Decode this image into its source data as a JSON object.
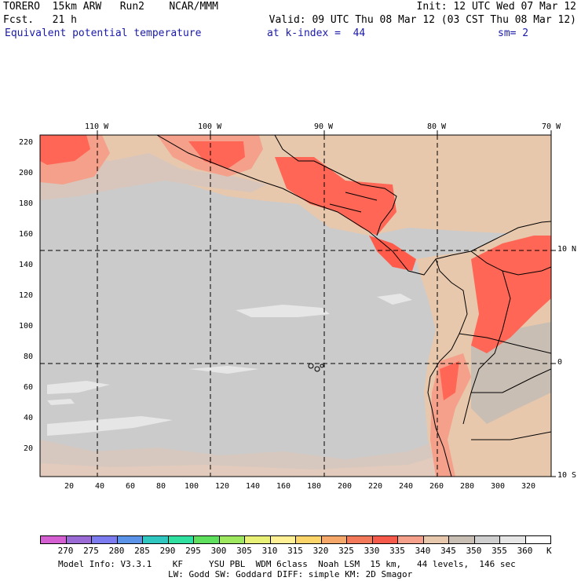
{
  "header": {
    "line1_left": "TORERO  15km ARW   Run2    NCAR/MMM",
    "line1_right": "Init: 12 UTC Wed 07 Mar 12",
    "line2_left": "Fcst.   21 h",
    "line2_right": "Valid: 09 UTC Thu 08 Mar 12 (03 CST Thu 08 Mar 12)",
    "field": "Equivalent potential temperature",
    "level": "at k-index =  44",
    "smooth": "sm= 2"
  },
  "map": {
    "top_lon_labels": [
      "110 W",
      "100 W",
      "90 W",
      "80 W",
      "70 W"
    ],
    "right_lat_labels": [
      "10 N",
      "0",
      "10 S"
    ],
    "x_ticks": [
      "20",
      "40",
      "60",
      "80",
      "100",
      "120",
      "140",
      "160",
      "180",
      "200",
      "220",
      "240",
      "260",
      "280",
      "300",
      "320"
    ],
    "y_ticks": [
      "220",
      "200",
      "180",
      "160",
      "140",
      "120",
      "100",
      "80",
      "60",
      "40",
      "20"
    ],
    "colors": {
      "dominant_gray": "#cbcbcb",
      "light_gray": "#e6e6e6",
      "tan": "#e8c8ad",
      "peach": "#f0c6a8",
      "salmon": "#f4a38a",
      "red": "#ff6655",
      "bright_red": "#ff5a4a",
      "coast": "#000000"
    }
  },
  "colorbar": {
    "labels": [
      "270",
      "275",
      "280",
      "285",
      "290",
      "295",
      "300",
      "305",
      "310",
      "315",
      "320",
      "325",
      "330",
      "335",
      "340",
      "345",
      "350",
      "355",
      "360"
    ],
    "unit": "K",
    "colors": [
      "#d35fd0",
      "#9a6bd4",
      "#7c7cf0",
      "#5a93e8",
      "#2fc7c0",
      "#2fe0a0",
      "#5ee05e",
      "#9ee860",
      "#e8f078",
      "#fff096",
      "#fbd46a",
      "#f6a86a",
      "#f27a5a",
      "#f55a4a",
      "#f4a08a",
      "#e8c8ad",
      "#c8beb4",
      "#cfcfcf",
      "#e6e6e6",
      "#ffffff"
    ]
  },
  "footer": {
    "line1": "Model Info: V3.3.1    KF     YSU PBL  WDM 6class  Noah LSM  15 km,   44 levels,  146 sec",
    "line2": "LW: Godd SW: Goddard DIFF: simple KM: 2D Smagor"
  }
}
